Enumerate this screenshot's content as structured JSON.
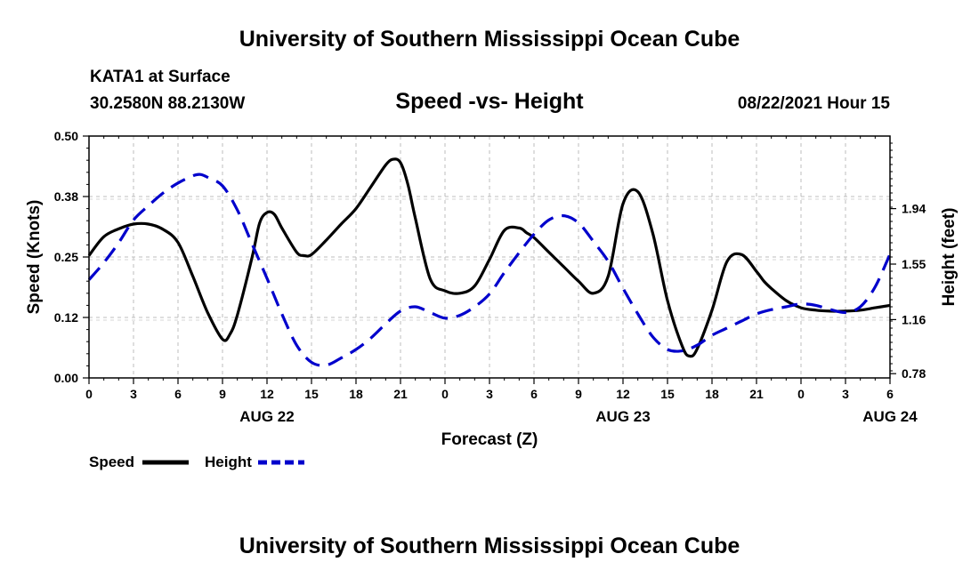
{
  "header_title": "University of Southern Mississippi Ocean Cube",
  "footer_title": "University of Southern Mississippi Ocean Cube",
  "station": "KATA1 at Surface",
  "coords": "30.2580N  88.2130W",
  "datetime": "08/22/2021 Hour 15",
  "chart_data": {
    "type": "line",
    "title": "Speed -vs- Height",
    "xlabel": "Forecast (Z)",
    "ylabel": "Speed (Knots)",
    "y2label": "Height (feet)",
    "x_ticks": [
      "0",
      "3",
      "6",
      "9",
      "12",
      "15",
      "18",
      "21",
      "0",
      "3",
      "6",
      "9",
      "12",
      "15",
      "18",
      "21",
      "0",
      "3",
      "6"
    ],
    "date_labels": [
      {
        "label": "AUG 22",
        "hour": 12
      },
      {
        "label": "AUG 23",
        "hour": 36
      },
      {
        "label": "AUG 24",
        "hour": 54
      }
    ],
    "xlim": [
      0,
      54
    ],
    "ylim": [
      0,
      0.5
    ],
    "y_ticks": [
      {
        "value": 0.0,
        "label": "0.00"
      },
      {
        "value": 0.125,
        "label": "0.12"
      },
      {
        "value": 0.25,
        "label": "0.25"
      },
      {
        "value": 0.375,
        "label": "0.38"
      },
      {
        "value": 0.5,
        "label": "0.50"
      }
    ],
    "y2lim": [
      0.75,
      2.45
    ],
    "y2_ticks": [
      {
        "value": 0.78,
        "label": "0.78"
      },
      {
        "value": 1.16,
        "label": "1.16"
      },
      {
        "value": 1.55,
        "label": "1.55"
      },
      {
        "value": 1.94,
        "label": "1.94"
      }
    ],
    "series": [
      {
        "name": "Speed",
        "axis": "left",
        "color": "#000000",
        "dash": "",
        "x": [
          0,
          1,
          2,
          3,
          4,
          5,
          6,
          7,
          8,
          9,
          9.5,
          10,
          11,
          11.5,
          12,
          12.5,
          13,
          14,
          14.5,
          15,
          16,
          17,
          18,
          19,
          20,
          20.5,
          21,
          21.5,
          22,
          23,
          24,
          25,
          26,
          27,
          28,
          29,
          29.5,
          30,
          31,
          32,
          33,
          34,
          35,
          36,
          37,
          38,
          39,
          40,
          40.5,
          41,
          42,
          43,
          44,
          45,
          45.5,
          46,
          47,
          48,
          49,
          50,
          51,
          52,
          53,
          54
        ],
        "values": [
          0.253,
          0.292,
          0.308,
          0.318,
          0.318,
          0.307,
          0.28,
          0.21,
          0.135,
          0.08,
          0.09,
          0.13,
          0.25,
          0.32,
          0.342,
          0.338,
          0.31,
          0.26,
          0.253,
          0.255,
          0.285,
          0.318,
          0.35,
          0.395,
          0.44,
          0.452,
          0.445,
          0.4,
          0.33,
          0.205,
          0.18,
          0.175,
          0.19,
          0.245,
          0.305,
          0.31,
          0.3,
          0.29,
          0.26,
          0.23,
          0.2,
          0.175,
          0.21,
          0.36,
          0.385,
          0.3,
          0.16,
          0.065,
          0.045,
          0.06,
          0.14,
          0.24,
          0.255,
          0.22,
          0.2,
          0.185,
          0.16,
          0.145,
          0.14,
          0.138,
          0.138,
          0.14,
          0.145,
          0.15
        ]
      },
      {
        "name": "Height",
        "axis": "right",
        "color": "#0000CC",
        "dash": "18,10",
        "x": [
          0,
          1,
          2,
          3,
          4,
          5,
          6,
          7,
          7.5,
          8,
          9,
          10,
          11,
          12,
          13,
          14,
          15,
          16,
          17,
          18,
          19,
          20,
          21,
          22,
          23,
          24,
          25,
          26,
          27,
          28,
          29,
          30,
          31,
          32,
          33,
          34,
          35,
          36,
          37,
          38,
          39,
          40,
          41,
          42,
          43,
          44,
          45,
          46,
          47,
          48,
          49,
          50,
          51,
          52,
          53,
          54
        ],
        "values": [
          1.44,
          1.56,
          1.7,
          1.86,
          1.96,
          2.05,
          2.12,
          2.17,
          2.18,
          2.16,
          2.1,
          1.93,
          1.69,
          1.45,
          1.2,
          0.98,
          0.86,
          0.84,
          0.89,
          0.95,
          1.03,
          1.13,
          1.22,
          1.25,
          1.21,
          1.17,
          1.19,
          1.25,
          1.34,
          1.49,
          1.63,
          1.76,
          1.86,
          1.89,
          1.84,
          1.71,
          1.57,
          1.38,
          1.2,
          1.04,
          0.95,
          0.94,
          0.98,
          1.05,
          1.1,
          1.15,
          1.2,
          1.23,
          1.25,
          1.27,
          1.26,
          1.23,
          1.21,
          1.25,
          1.39,
          1.62
        ]
      }
    ],
    "legend": [
      {
        "label": "Speed",
        "color": "#000000",
        "dash": ""
      },
      {
        "label": "Height",
        "color": "#0000CC",
        "dash": "10,5"
      }
    ]
  }
}
